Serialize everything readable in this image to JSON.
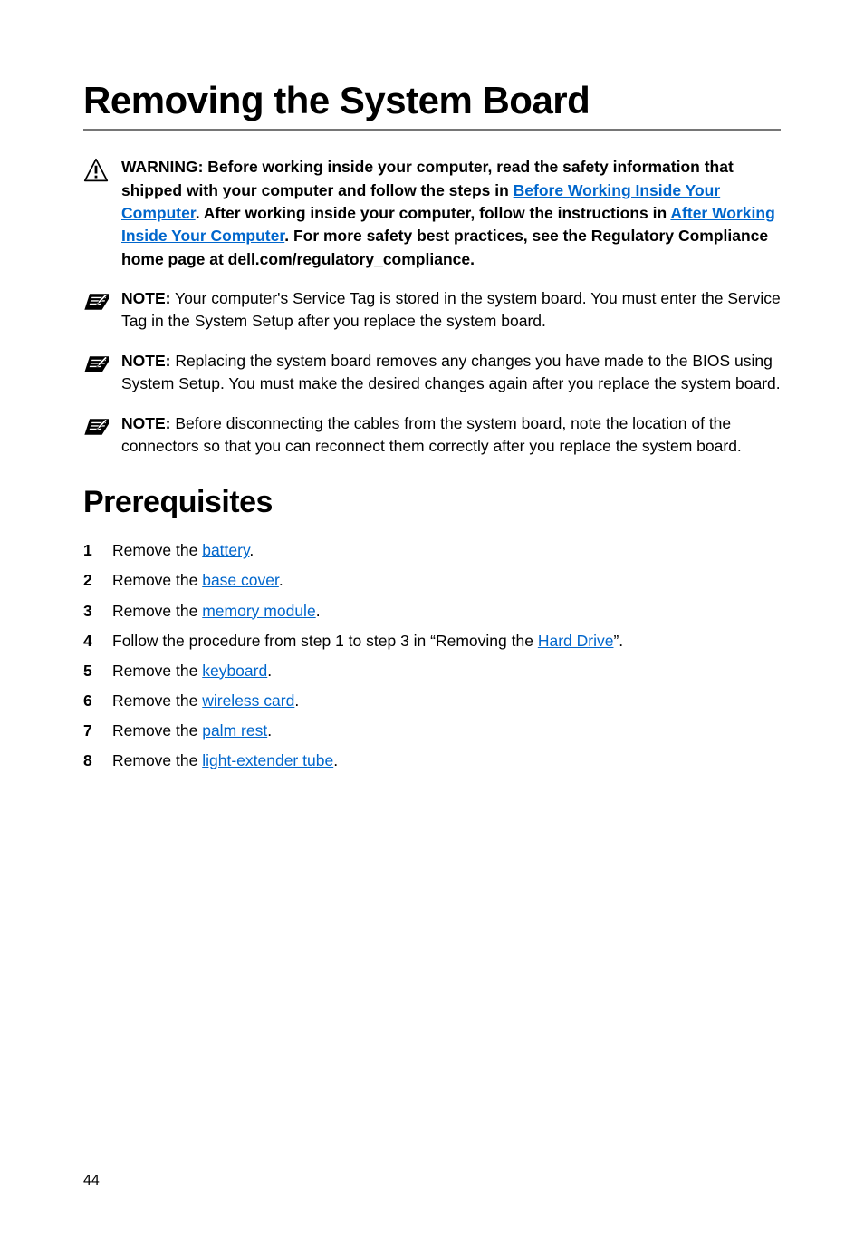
{
  "page": {
    "title": "Removing the System Board",
    "number": "44"
  },
  "icons": {
    "warning": {
      "stroke": "#000000",
      "fill": "#ffffff",
      "glyph_fill": "#000000"
    },
    "note": {
      "bg_fill": "#000000",
      "stripe_fill": "#ffffff",
      "pen_fill": "#ffffff"
    }
  },
  "callouts": [
    {
      "kind": "warning",
      "runs": [
        {
          "t": "WARNING: Before working inside your computer, read the safety information that shipped with your computer and follow the steps in ",
          "bold": true
        },
        {
          "t": "Before Working Inside Your Computer",
          "bold": true,
          "link": true
        },
        {
          "t": ". After working inside your computer, follow the instructions in ",
          "bold": true
        },
        {
          "t": "After Working Inside Your Computer",
          "bold": true,
          "link": true
        },
        {
          "t": ". For more safety best practices, see the Regulatory Compliance home page at dell.com/regulatory_compliance.",
          "bold": true
        }
      ]
    },
    {
      "kind": "note",
      "runs": [
        {
          "t": "NOTE:",
          "bold": true
        },
        {
          "t": " Your computer's Service Tag is stored in the system board. You must enter the Service Tag in the System Setup after you replace the system board."
        }
      ]
    },
    {
      "kind": "note",
      "runs": [
        {
          "t": "NOTE:",
          "bold": true
        },
        {
          "t": " Replacing the system board removes any changes you have made to the BIOS using System Setup. You must make the desired changes again after you replace the system board."
        }
      ]
    },
    {
      "kind": "note",
      "runs": [
        {
          "t": "NOTE:",
          "bold": true
        },
        {
          "t": " Before disconnecting the cables from the system board, note the location of the connectors so that you can reconnect them correctly after you replace the system board."
        }
      ]
    }
  ],
  "prerequisites": {
    "heading": "Prerequisites",
    "items": [
      {
        "runs": [
          {
            "t": "Remove the "
          },
          {
            "t": "battery",
            "link": true
          },
          {
            "t": "."
          }
        ]
      },
      {
        "runs": [
          {
            "t": "Remove the "
          },
          {
            "t": "base cover",
            "link": true
          },
          {
            "t": "."
          }
        ]
      },
      {
        "runs": [
          {
            "t": "Remove the "
          },
          {
            "t": "memory module",
            "link": true
          },
          {
            "t": "."
          }
        ]
      },
      {
        "runs": [
          {
            "t": "Follow the procedure from step 1 to step 3 in “Removing the "
          },
          {
            "t": "Hard Drive",
            "link": true
          },
          {
            "t": "”."
          }
        ]
      },
      {
        "runs": [
          {
            "t": "Remove the "
          },
          {
            "t": "keyboard",
            "link": true
          },
          {
            "t": "."
          }
        ]
      },
      {
        "runs": [
          {
            "t": "Remove the "
          },
          {
            "t": "wireless card",
            "link": true
          },
          {
            "t": "."
          }
        ]
      },
      {
        "runs": [
          {
            "t": "Remove the "
          },
          {
            "t": "palm rest",
            "link": true
          },
          {
            "t": "."
          }
        ]
      },
      {
        "runs": [
          {
            "t": "Remove the "
          },
          {
            "t": "light-extender tube",
            "link": true
          },
          {
            "t": "."
          }
        ]
      }
    ]
  }
}
